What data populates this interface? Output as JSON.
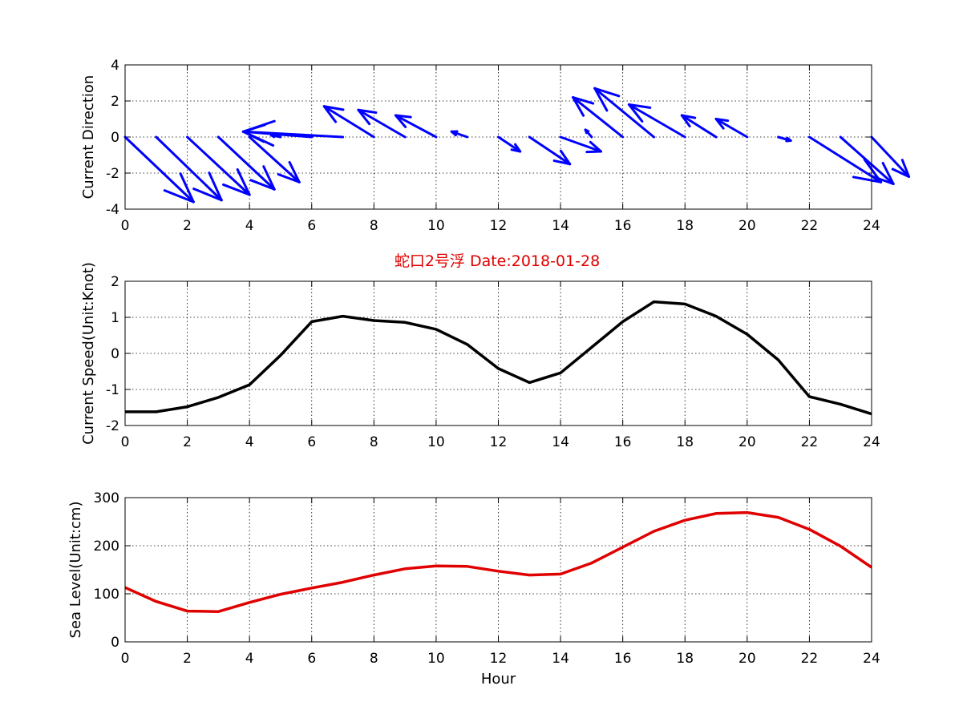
{
  "title": "蛇口2号浮   Date:2018-01-28",
  "colors": {
    "title": "#e00000",
    "quiver": "#0000ff",
    "speed": "#000000",
    "level": "#e00000"
  },
  "chart_data": [
    {
      "type": "quiver",
      "ylabel": "Current Direction",
      "xlabel": "",
      "xlim": [
        0,
        24
      ],
      "ylim": [
        -4,
        4
      ],
      "xticks": [
        0,
        2,
        4,
        6,
        8,
        10,
        12,
        14,
        16,
        18,
        20,
        22,
        24
      ],
      "yticks": [
        -4,
        -2,
        0,
        2,
        4
      ],
      "grid": true,
      "x": [
        0,
        1,
        2,
        3,
        4,
        5,
        6,
        7,
        8,
        9,
        10,
        11,
        12,
        13,
        14,
        15,
        16,
        17,
        18,
        19,
        20,
        21,
        22,
        23,
        24
      ],
      "u": [
        2.2,
        2.1,
        2.0,
        1.8,
        1.6,
        -0.3,
        -2.2,
        -3.2,
        -1.6,
        -1.5,
        -1.3,
        -0.5,
        0.7,
        1.3,
        1.3,
        -0.2,
        -1.6,
        -1.9,
        -1.8,
        -1.1,
        -1.0,
        0.4,
        2.3,
        1.7,
        1.2
      ],
      "v": [
        -3.6,
        -3.5,
        -3.2,
        -2.9,
        -2.5,
        0.1,
        0.3,
        0.3,
        1.7,
        1.5,
        1.2,
        0.3,
        -0.8,
        -1.5,
        -0.8,
        0.4,
        2.2,
        2.7,
        1.8,
        1.2,
        1.0,
        -0.2,
        -2.5,
        -2.6,
        -2.2
      ]
    },
    {
      "type": "line",
      "ylabel": "Current Speed(Unit:Knot)",
      "xlabel": "",
      "xlim": [
        0,
        24
      ],
      "ylim": [
        -2,
        2
      ],
      "xticks": [
        0,
        2,
        4,
        6,
        8,
        10,
        12,
        14,
        16,
        18,
        20,
        22,
        24
      ],
      "yticks": [
        -2,
        -1,
        0,
        1,
        2
      ],
      "grid": true,
      "x": [
        0,
        1,
        2,
        3,
        4,
        5,
        6,
        7,
        8,
        9,
        10,
        11,
        12,
        13,
        14,
        15,
        16,
        17,
        18,
        19,
        20,
        21,
        22,
        23,
        24
      ],
      "values": [
        -1.62,
        -1.62,
        -1.48,
        -1.22,
        -0.87,
        -0.05,
        0.88,
        1.03,
        0.91,
        0.86,
        0.67,
        0.25,
        -0.42,
        -0.81,
        -0.54,
        0.17,
        0.88,
        1.43,
        1.37,
        1.03,
        0.53,
        -0.18,
        -1.2,
        -1.41,
        -1.68
      ]
    },
    {
      "type": "line",
      "ylabel": "Sea Level(Unit:cm)",
      "xlabel": "Hour",
      "xlim": [
        0,
        24
      ],
      "ylim": [
        0,
        300
      ],
      "xticks": [
        0,
        2,
        4,
        6,
        8,
        10,
        12,
        14,
        16,
        18,
        20,
        22,
        24
      ],
      "yticks": [
        0,
        100,
        200,
        300
      ],
      "grid": true,
      "x": [
        0,
        1,
        2,
        3,
        4,
        5,
        6,
        7,
        8,
        9,
        10,
        11,
        12,
        13,
        14,
        15,
        16,
        17,
        18,
        19,
        20,
        21,
        22,
        23,
        24
      ],
      "values": [
        113,
        84,
        64,
        63,
        82,
        99,
        112,
        124,
        139,
        152,
        158,
        157,
        147,
        139,
        141,
        164,
        197,
        230,
        253,
        267,
        269,
        259,
        234,
        199,
        155
      ]
    }
  ]
}
